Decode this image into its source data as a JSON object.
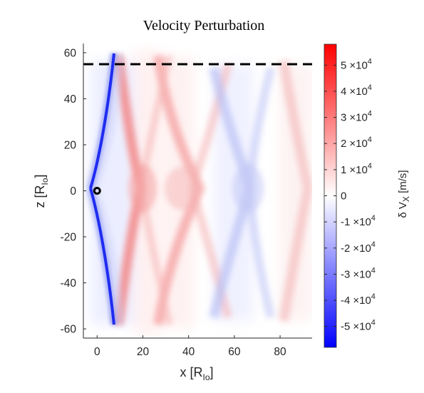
{
  "chart_data": {
    "type": "heatmap",
    "title": "Velocity Perturbation",
    "xlabel": {
      "main": "x [R",
      "sub": "Io",
      "end": "]"
    },
    "ylabel": {
      "main": "z [R",
      "sub": "Io",
      "end": "]"
    },
    "xlim": [
      -6,
      94
    ],
    "ylim": [
      -64,
      64
    ],
    "x_ticks": [
      {
        "v": 0,
        "label": "0"
      },
      {
        "v": 20,
        "label": "20"
      },
      {
        "v": 40,
        "label": "40"
      },
      {
        "v": 60,
        "label": "60"
      },
      {
        "v": 80,
        "label": "80"
      }
    ],
    "y_ticks": [
      {
        "v": 60,
        "label": "60"
      },
      {
        "v": 40,
        "label": "40"
      },
      {
        "v": 20,
        "label": "20"
      },
      {
        "v": 0,
        "label": "0"
      },
      {
        "v": -20,
        "label": "-20"
      },
      {
        "v": -40,
        "label": "-40"
      },
      {
        "v": -60,
        "label": "-60"
      }
    ],
    "dashed_line_z": 55,
    "marker": {
      "x": 0,
      "z": 0
    },
    "colorbar": {
      "label": "δ V",
      "label_sub": "X",
      "label_unit": " [m/s]",
      "range": [
        -58000,
        58000
      ],
      "low_color": "#0000ff",
      "mid_color": "#ffffff",
      "high_color": "#ff0000",
      "ticks": [
        {
          "v": 50000,
          "mant": "5",
          "base": "×10",
          "exp": "4"
        },
        {
          "v": 40000,
          "mant": "4",
          "base": "×10",
          "exp": "4"
        },
        {
          "v": 30000,
          "mant": "3",
          "base": "×10",
          "exp": "4"
        },
        {
          "v": 20000,
          "mant": "2",
          "base": "×10",
          "exp": "4"
        },
        {
          "v": 10000,
          "mant": "1",
          "base": "×10",
          "exp": "4"
        },
        {
          "v": 0,
          "mant": "0",
          "base": "",
          "exp": ""
        },
        {
          "v": -10000,
          "mant": "-1",
          "base": "×10",
          "exp": "4"
        },
        {
          "v": -20000,
          "mant": "-2",
          "base": "×10",
          "exp": "4"
        },
        {
          "v": -30000,
          "mant": "-3",
          "base": "×10",
          "exp": "4"
        },
        {
          "v": -40000,
          "mant": "-4",
          "base": "×10",
          "exp": "4"
        },
        {
          "v": -50000,
          "mant": "-5",
          "base": "×10",
          "exp": "4"
        }
      ]
    }
  }
}
